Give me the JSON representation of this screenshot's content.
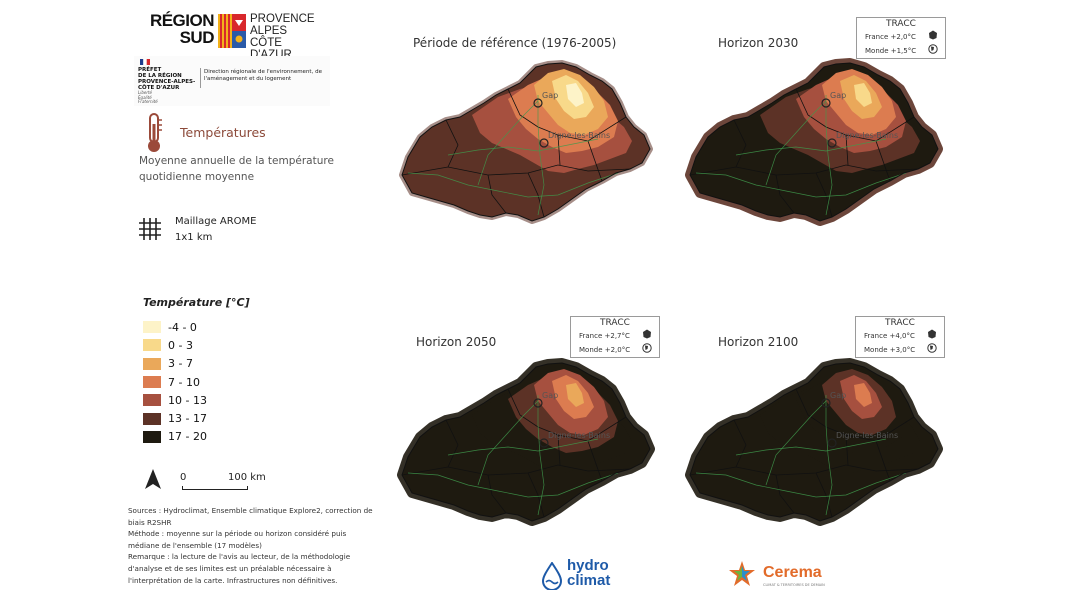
{
  "header": {
    "region_logo_line1": "RÉGION",
    "region_logo_line2": "SUD",
    "region_logo_paca": [
      "PROVENCE",
      "ALPES",
      "CÔTE D'AZUR"
    ],
    "prefet_logo_text": "PRÉFET\nDE LA RÉGION\nPROVENCE-ALPES-\nCÔTE D'AZUR",
    "prefet_devise": "Liberté\nÉgalité\nFraternité",
    "dreal_text": "Direction régionale de l'environnement, de l'aménagement et du logement"
  },
  "theme": {
    "icon": "thermometer-icon",
    "title": "Températures",
    "description": "Moyenne annuelle de la température quotidienne moyenne"
  },
  "mesh": {
    "icon": "grid-icon",
    "label": "Maillage AROME",
    "resolution": "1x1 km"
  },
  "legend": {
    "title": "Température [°C]",
    "items": [
      {
        "label": "-4 - 0",
        "color": "#fdf3c8"
      },
      {
        "label": "0 - 3",
        "color": "#f8d98a"
      },
      {
        "label": "3 - 7",
        "color": "#eaa85a"
      },
      {
        "label": "7 - 10",
        "color": "#dc7c50"
      },
      {
        "label": "10 - 13",
        "color": "#a6503f"
      },
      {
        "label": "13 - 17",
        "color": "#5c3226"
      },
      {
        "label": "17 - 20",
        "color": "#1e1a10"
      }
    ]
  },
  "scale": {
    "start": "0",
    "end": "100 km"
  },
  "notes": {
    "sources": "Sources : Hydroclimat,  Ensemble climatique Explore2, correction de biais R2SHR",
    "method": "Méthode : moyenne sur la période ou horizon considéré puis médiane de l'ensemble (17 modèles)",
    "remark": "Remarque : la lecture de l'avis au lecteur, de la méthodologie d'analyse et de ses limites est un préalable nécessaire à l'interprétation de la carte. Infrastructures non définitives."
  },
  "map_labels": {
    "city1": "Gap",
    "city2": "Digne-les-Bains"
  },
  "panels": [
    {
      "title": "Période de référence (1976-2005)",
      "tracc": null,
      "warming_level": 0
    },
    {
      "title": "Horizon 2030",
      "tracc": {
        "header": "TRACC",
        "france": "France +2,0°C",
        "monde": "Monde +1,5°C"
      },
      "warming_level": 1
    },
    {
      "title": "Horizon 2050",
      "tracc": {
        "header": "TRACC",
        "france": "France +2,7°C",
        "monde": "Monde +2,0°C"
      },
      "warming_level": 2
    },
    {
      "title": "Horizon 2100",
      "tracc": {
        "header": "TRACC",
        "france": "France +4,0°C",
        "monde": "Monde +3,0°C"
      },
      "warming_level": 3
    }
  ],
  "footer": {
    "hydro_line1": "hydro",
    "hydro_line2": "climat",
    "cerema_name": "Cerema",
    "cerema_sub": "CLIMAT & TERRITOIRES DE DEMAIN"
  }
}
